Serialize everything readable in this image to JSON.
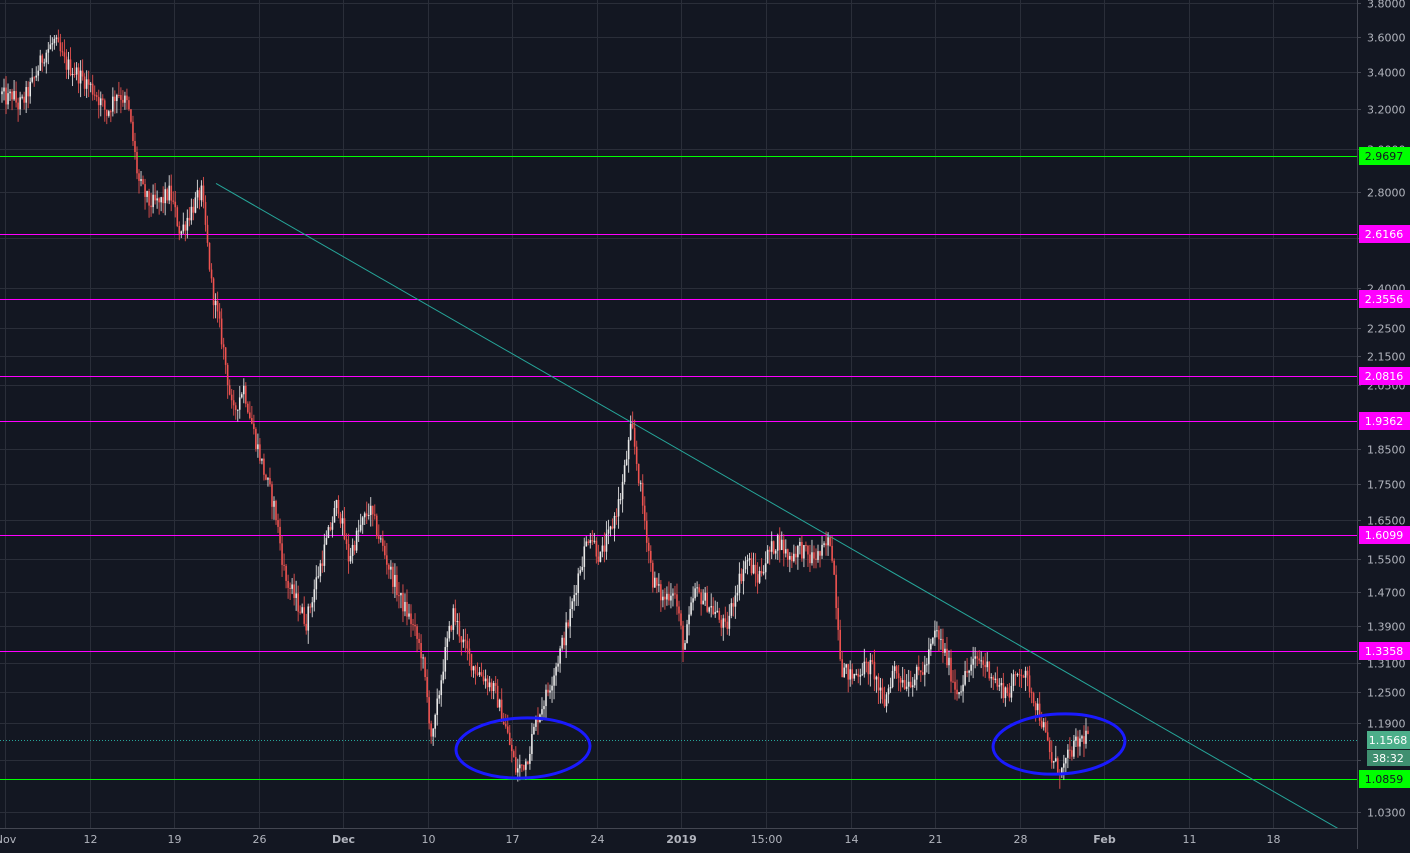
{
  "chart_data": {
    "type": "candlestick",
    "scale": "log",
    "y_ticks": [
      {
        "label": "3.8000",
        "value": 3.8
      },
      {
        "label": "3.6000",
        "value": 3.6
      },
      {
        "label": "3.4000",
        "value": 3.4
      },
      {
        "label": "3.2000",
        "value": 3.2
      },
      {
        "label": "3.0000",
        "value": 3.0
      },
      {
        "label": "2.8000",
        "value": 2.8
      },
      {
        "label": "2.6000",
        "value": 2.6
      },
      {
        "label": "2.4000",
        "value": 2.4
      },
      {
        "label": "2.2500",
        "value": 2.25
      },
      {
        "label": "2.1500",
        "value": 2.15
      },
      {
        "label": "2.0500",
        "value": 2.05
      },
      {
        "label": "1.8500",
        "value": 1.85
      },
      {
        "label": "1.7500",
        "value": 1.75
      },
      {
        "label": "1.6500",
        "value": 1.65
      },
      {
        "label": "1.5500",
        "value": 1.55
      },
      {
        "label": "1.4700",
        "value": 1.47
      },
      {
        "label": "1.3900",
        "value": 1.39
      },
      {
        "label": "1.3100",
        "value": 1.31
      },
      {
        "label": "1.2500",
        "value": 1.25
      },
      {
        "label": "1.1900",
        "value": 1.19
      },
      {
        "label": "1.1200",
        "value": 1.12
      },
      {
        "label": "1.0300",
        "value": 1.03
      }
    ],
    "x_ticks": [
      "Nov",
      "12",
      "19",
      "26",
      "Dec",
      "10",
      "17",
      "24",
      "2019",
      "15:00",
      "14",
      "21",
      "28",
      "Feb",
      "11",
      "18"
    ],
    "bold_x_ticks": [
      "Dec",
      "2019",
      "Feb"
    ],
    "horizontal_levels": [
      {
        "value": 2.9697,
        "label": "2.9697",
        "color": "#00ff00"
      },
      {
        "value": 2.6166,
        "label": "2.6166",
        "color": "#ff00ff"
      },
      {
        "value": 2.3556,
        "label": "2.3556",
        "color": "#ff00ff"
      },
      {
        "value": 2.0816,
        "label": "2.0816",
        "color": "#ff00ff"
      },
      {
        "value": 1.9362,
        "label": "1.9362",
        "color": "#ff00ff"
      },
      {
        "value": 1.6099,
        "label": "1.6099",
        "color": "#ff00ff"
      },
      {
        "value": 1.3358,
        "label": "1.3358",
        "color": "#ff00ff"
      },
      {
        "value": 1.0859,
        "label": "1.0859",
        "color": "#00ff00"
      }
    ],
    "last_price": {
      "value": 1.1568,
      "label": "1.1568",
      "countdown": "38:32",
      "color": "#4caf8a"
    },
    "trendline": {
      "from_value": 2.84,
      "to_value": 0.99,
      "color": "#26a69a"
    },
    "price_path": [
      [
        0,
        3.28
      ],
      [
        0.5,
        3.25
      ],
      [
        1,
        3.28
      ],
      [
        1.5,
        3.22
      ],
      [
        2,
        3.24
      ],
      [
        3,
        3.35
      ],
      [
        4,
        3.5
      ],
      [
        5,
        3.57
      ],
      [
        6,
        3.45
      ],
      [
        7,
        3.4
      ],
      [
        8,
        3.35
      ],
      [
        9,
        3.28
      ],
      [
        10,
        3.18
      ],
      [
        11,
        3.3
      ],
      [
        12,
        3.22
      ],
      [
        13,
        2.85
      ],
      [
        14,
        2.75
      ],
      [
        15,
        2.75
      ],
      [
        16,
        2.8
      ],
      [
        17,
        2.62
      ],
      [
        18,
        2.72
      ],
      [
        19,
        2.8
      ],
      [
        20,
        2.4
      ],
      [
        21,
        2.2
      ],
      [
        22,
        1.95
      ],
      [
        23,
        2.05
      ],
      [
        24,
        1.9
      ],
      [
        25,
        1.78
      ],
      [
        26,
        1.68
      ],
      [
        27,
        1.5
      ],
      [
        28,
        1.45
      ],
      [
        29,
        1.4
      ],
      [
        30,
        1.5
      ],
      [
        31,
        1.6
      ],
      [
        32,
        1.7
      ],
      [
        33,
        1.55
      ],
      [
        34,
        1.62
      ],
      [
        35,
        1.68
      ],
      [
        36,
        1.6
      ],
      [
        37,
        1.52
      ],
      [
        38,
        1.45
      ],
      [
        39,
        1.4
      ],
      [
        40,
        1.33
      ],
      [
        41,
        1.15
      ],
      [
        42,
        1.3
      ],
      [
        43,
        1.42
      ],
      [
        44,
        1.35
      ],
      [
        45,
        1.3
      ],
      [
        46,
        1.28
      ],
      [
        47,
        1.25
      ],
      [
        48,
        1.18
      ],
      [
        49,
        1.1
      ],
      [
        50,
        1.12
      ],
      [
        51,
        1.2
      ],
      [
        52,
        1.25
      ],
      [
        53,
        1.32
      ],
      [
        54,
        1.4
      ],
      [
        55,
        1.52
      ],
      [
        56,
        1.62
      ],
      [
        57,
        1.55
      ],
      [
        58,
        1.62
      ],
      [
        59,
        1.72
      ],
      [
        60,
        1.92
      ],
      [
        61,
        1.7
      ],
      [
        62,
        1.5
      ],
      [
        63,
        1.45
      ],
      [
        64,
        1.48
      ],
      [
        65,
        1.34
      ],
      [
        66,
        1.47
      ],
      [
        67,
        1.45
      ],
      [
        68,
        1.42
      ],
      [
        69,
        1.38
      ],
      [
        70,
        1.48
      ],
      [
        71,
        1.55
      ],
      [
        72,
        1.5
      ],
      [
        73,
        1.56
      ],
      [
        74,
        1.6
      ],
      [
        75,
        1.55
      ],
      [
        76,
        1.58
      ],
      [
        77,
        1.55
      ],
      [
        78,
        1.56
      ],
      [
        79,
        1.6
      ],
      [
        80,
        1.3
      ],
      [
        81,
        1.28
      ],
      [
        82,
        1.3
      ],
      [
        83,
        1.3
      ],
      [
        84,
        1.22
      ],
      [
        85,
        1.3
      ],
      [
        86,
        1.27
      ],
      [
        87,
        1.28
      ],
      [
        88,
        1.3
      ],
      [
        89,
        1.38
      ],
      [
        90,
        1.32
      ],
      [
        91,
        1.25
      ],
      [
        92,
        1.29
      ],
      [
        93,
        1.32
      ],
      [
        94,
        1.3
      ],
      [
        95,
        1.26
      ],
      [
        96,
        1.25
      ],
      [
        97,
        1.3
      ],
      [
        98,
        1.26
      ],
      [
        99,
        1.2
      ],
      [
        100,
        1.12
      ],
      [
        101,
        1.1
      ],
      [
        102,
        1.14
      ],
      [
        103,
        1.16
      ],
      [
        103.5,
        1.17
      ]
    ],
    "annotations": [
      {
        "type": "ellipse",
        "near_value": 1.13,
        "color": "#1a1aff"
      },
      {
        "type": "ellipse",
        "near_value": 1.13,
        "color": "#1a1aff"
      }
    ],
    "colors": {
      "background": "#131722",
      "grid": "#2a2e39",
      "axis_text": "#b2b5be",
      "up": "#e8e8e8",
      "down": "#ef5350",
      "dotted": "#26a69a"
    }
  }
}
